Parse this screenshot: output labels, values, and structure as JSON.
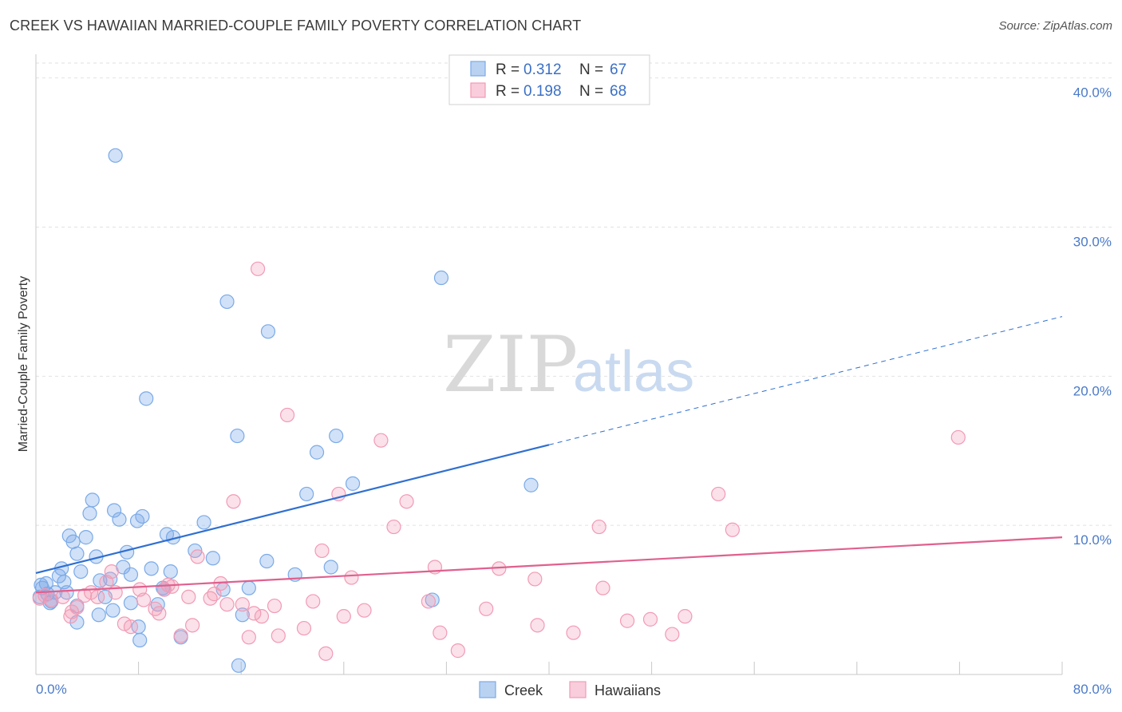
{
  "header": {
    "title": "CREEK VS HAWAIIAN MARRIED-COUPLE FAMILY POVERTY CORRELATION CHART",
    "source": "Source: ZipAtlas.com"
  },
  "watermark": {
    "zip": "ZIP",
    "atlas": "atlas"
  },
  "legend_top": [
    {
      "r_label": "R =",
      "r_value": "0.312",
      "n_label": "N =",
      "n_value": "67",
      "color": "#7aaae8"
    },
    {
      "r_label": "R =",
      "r_value": "0.198",
      "n_label": "N =",
      "n_value": "68",
      "color": "#f29ab5"
    }
  ],
  "legend_bottom": [
    "Creek",
    "Hawaiians"
  ],
  "chart_data": {
    "type": "scatter",
    "title": "CREEK VS HAWAIIAN MARRIED-COUPLE FAMILY POVERTY CORRELATION CHART",
    "xlabel": "",
    "ylabel": "Married-Couple Family Poverty",
    "xlim": [
      0,
      80
    ],
    "ylim": [
      0,
      41
    ],
    "x_tick_labels": [
      "0.0%",
      "80.0%"
    ],
    "y_ticks": [
      10,
      20,
      30,
      40
    ],
    "y_tick_labels": [
      "10.0%",
      "20.0%",
      "30.0%",
      "40.0%"
    ],
    "grid": true,
    "legend_position": "top-center",
    "series": [
      {
        "name": "Creek",
        "color": "#7aaae8",
        "line_color": "#2f6fd0",
        "trend": {
          "x0": 0,
          "y0": 6.8,
          "x1": 40,
          "y1": 15.4,
          "dash_to_x": 80,
          "dash_to_y": 24.0
        },
        "points": [
          [
            0.3,
            5.2
          ],
          [
            0.5,
            5.8
          ],
          [
            0.8,
            6.1
          ],
          [
            1.2,
            4.9
          ],
          [
            1.5,
            5.5
          ],
          [
            1.8,
            6.6
          ],
          [
            2.0,
            7.1
          ],
          [
            2.2,
            6.2
          ],
          [
            2.6,
            9.3
          ],
          [
            2.9,
            8.9
          ],
          [
            3.2,
            8.1
          ],
          [
            3.5,
            6.9
          ],
          [
            3.9,
            9.2
          ],
          [
            4.2,
            10.8
          ],
          [
            4.4,
            11.7
          ],
          [
            4.7,
            7.9
          ],
          [
            5.0,
            6.3
          ],
          [
            5.4,
            5.2
          ],
          [
            5.8,
            6.4
          ],
          [
            6.1,
            11.0
          ],
          [
            6.2,
            34.8
          ],
          [
            6.5,
            10.4
          ],
          [
            6.8,
            7.2
          ],
          [
            7.1,
            8.2
          ],
          [
            7.4,
            6.7
          ],
          [
            7.9,
            10.3
          ],
          [
            8.3,
            10.6
          ],
          [
            8.6,
            18.5
          ],
          [
            9.0,
            7.1
          ],
          [
            9.5,
            4.7
          ],
          [
            10.0,
            5.7
          ],
          [
            10.2,
            9.4
          ],
          [
            10.7,
            9.2
          ],
          [
            10.5,
            6.9
          ],
          [
            11.3,
            2.5
          ],
          [
            12.4,
            8.3
          ],
          [
            13.1,
            10.2
          ],
          [
            13.8,
            7.8
          ],
          [
            14.6,
            5.7
          ],
          [
            14.9,
            25.0
          ],
          [
            15.7,
            16.0
          ],
          [
            16.1,
            4.0
          ],
          [
            16.6,
            5.8
          ],
          [
            18.0,
            7.6
          ],
          [
            18.1,
            23.0
          ],
          [
            20.2,
            6.7
          ],
          [
            21.1,
            12.1
          ],
          [
            21.9,
            14.9
          ],
          [
            23.0,
            7.2
          ],
          [
            23.4,
            16.0
          ],
          [
            24.7,
            12.8
          ],
          [
            30.9,
            5.0
          ],
          [
            31.6,
            26.6
          ],
          [
            38.6,
            12.7
          ],
          [
            0.4,
            6.0
          ],
          [
            0.9,
            5.4
          ],
          [
            1.1,
            4.8
          ],
          [
            3.2,
            4.6
          ],
          [
            4.9,
            4.0
          ],
          [
            2.4,
            5.5
          ],
          [
            6.0,
            4.3
          ],
          [
            7.4,
            4.8
          ],
          [
            8.0,
            3.2
          ],
          [
            8.1,
            2.3
          ],
          [
            15.8,
            0.6
          ],
          [
            3.2,
            3.5
          ],
          [
            9.9,
            5.8
          ]
        ]
      },
      {
        "name": "Hawaiians",
        "color": "#f29ab5",
        "line_color": "#e0608e",
        "trend": {
          "x0": 0,
          "y0": 5.5,
          "x1": 80,
          "y1": 9.2
        },
        "points": [
          [
            0.3,
            5.1
          ],
          [
            0.7,
            5.3
          ],
          [
            1.2,
            5.0
          ],
          [
            2.1,
            5.2
          ],
          [
            2.7,
            3.9
          ],
          [
            3.2,
            4.5
          ],
          [
            3.8,
            5.3
          ],
          [
            4.3,
            5.5
          ],
          [
            4.8,
            5.2
          ],
          [
            5.5,
            6.2
          ],
          [
            5.9,
            6.9
          ],
          [
            6.2,
            5.5
          ],
          [
            6.9,
            3.4
          ],
          [
            7.4,
            3.2
          ],
          [
            8.1,
            5.7
          ],
          [
            8.4,
            5.0
          ],
          [
            9.3,
            4.4
          ],
          [
            10.0,
            5.7
          ],
          [
            10.3,
            6.0
          ],
          [
            10.6,
            5.9
          ],
          [
            11.3,
            2.6
          ],
          [
            11.9,
            5.2
          ],
          [
            12.2,
            3.3
          ],
          [
            12.6,
            7.9
          ],
          [
            13.6,
            5.1
          ],
          [
            13.9,
            5.4
          ],
          [
            14.4,
            6.1
          ],
          [
            14.9,
            4.7
          ],
          [
            15.4,
            11.6
          ],
          [
            16.1,
            4.7
          ],
          [
            16.6,
            2.5
          ],
          [
            17.0,
            4.1
          ],
          [
            17.3,
            27.2
          ],
          [
            17.6,
            3.9
          ],
          [
            18.6,
            4.6
          ],
          [
            18.9,
            2.6
          ],
          [
            19.6,
            17.4
          ],
          [
            20.9,
            3.1
          ],
          [
            21.6,
            4.9
          ],
          [
            22.6,
            1.4
          ],
          [
            22.3,
            8.3
          ],
          [
            23.6,
            12.1
          ],
          [
            24.0,
            3.9
          ],
          [
            24.6,
            6.5
          ],
          [
            25.6,
            4.3
          ],
          [
            26.9,
            15.7
          ],
          [
            27.9,
            9.9
          ],
          [
            28.9,
            11.6
          ],
          [
            30.6,
            4.9
          ],
          [
            31.1,
            7.2
          ],
          [
            31.5,
            2.8
          ],
          [
            32.9,
            1.6
          ],
          [
            35.1,
            4.4
          ],
          [
            36.1,
            7.1
          ],
          [
            38.9,
            6.4
          ],
          [
            39.1,
            3.3
          ],
          [
            41.9,
            2.8
          ],
          [
            43.9,
            9.9
          ],
          [
            44.2,
            5.8
          ],
          [
            46.1,
            3.6
          ],
          [
            47.9,
            3.7
          ],
          [
            49.6,
            2.7
          ],
          [
            50.6,
            3.9
          ],
          [
            53.2,
            12.1
          ],
          [
            54.3,
            9.7
          ],
          [
            71.9,
            15.9
          ],
          [
            2.8,
            4.2
          ],
          [
            9.6,
            4.1
          ]
        ]
      }
    ]
  }
}
